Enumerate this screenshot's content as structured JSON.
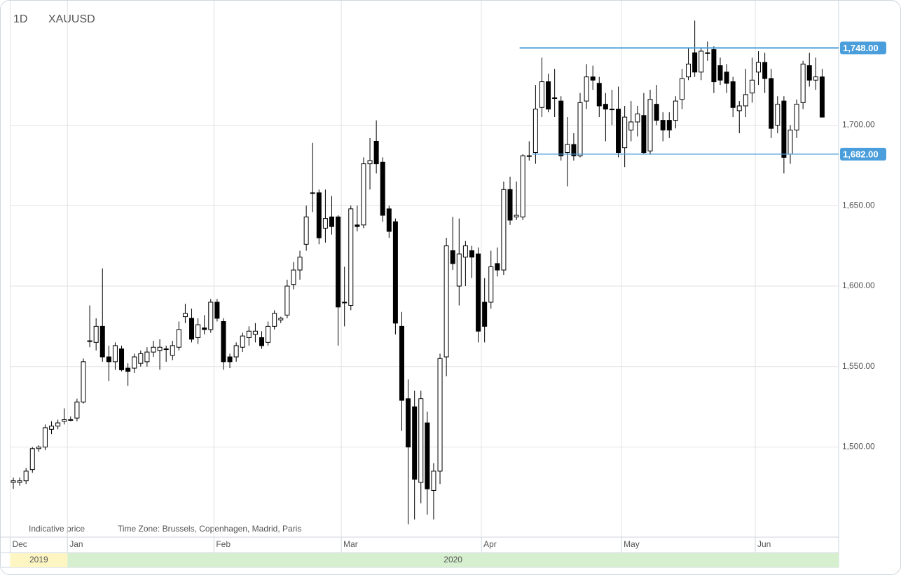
{
  "chart_data": {
    "type": "candlestick",
    "symbol": "XAUUSD",
    "period": "1D",
    "footnote": "Indicative price",
    "timezone": "Time Zone: Brussels, Copenhagen, Madrid, Paris",
    "open": [
      1478,
      1478,
      1479,
      1486,
      1499,
      1500,
      1511,
      1513,
      1516,
      1517,
      1518,
      1528,
      1566,
      1565,
      1575,
      1556,
      1553,
      1561,
      1549,
      1549,
      1552,
      1553,
      1559,
      1560,
      1561,
      1557,
      1562,
      1581,
      1580,
      1568,
      1574,
      1573,
      1590,
      1578,
      1556,
      1556,
      1562,
      1568,
      1570,
      1568,
      1565,
      1575,
      1579,
      1582,
      1601,
      1610,
      1626,
      1658,
      1658,
      1636,
      1643,
      1643,
      1590,
      1588,
      1638,
      1638,
      1676,
      1690,
      1677,
      1648,
      1640,
      1575,
      1530,
      1525,
      1478,
      1515,
      1473,
      1485,
      1556,
      1622,
      1600,
      1618,
      1622,
      1620,
      1590,
      1590,
      1614,
      1610,
      1660,
      1643,
      1643,
      1681,
      1683,
      1711,
      1727,
      1717,
      1715,
      1683,
      1688,
      1681,
      1715,
      1730,
      1726,
      1713,
      1710,
      1710,
      1686,
      1697,
      1702,
      1706,
      1684,
      1713,
      1703,
      1703,
      1703,
      1716,
      1730,
      1745,
      1733,
      1745,
      1747,
      1737,
      1733,
      1727,
      1709,
      1712,
      1720,
      1733,
      1739,
      1729,
      1700,
      1715,
      1682,
      1697,
      1714,
      1737,
      1728,
      1730
    ],
    "high": [
      1481,
      1481,
      1487,
      1500,
      1501,
      1514,
      1516,
      1517,
      1524,
      1519,
      1530,
      1555,
      1588,
      1580,
      1611,
      1563,
      1565,
      1563,
      1552,
      1558,
      1560,
      1562,
      1566,
      1567,
      1563,
      1566,
      1578,
      1589,
      1586,
      1580,
      1582,
      1592,
      1592,
      1580,
      1558,
      1565,
      1571,
      1575,
      1577,
      1572,
      1578,
      1585,
      1581,
      1604,
      1615,
      1622,
      1650,
      1689,
      1660,
      1660,
      1656,
      1644,
      1612,
      1650,
      1650,
      1680,
      1692,
      1703,
      1680,
      1650,
      1642,
      1584,
      1542,
      1535,
      1535,
      1522,
      1490,
      1558,
      1630,
      1643,
      1642,
      1628,
      1625,
      1624,
      1605,
      1622,
      1624,
      1665,
      1668,
      1665,
      1682,
      1690,
      1725,
      1742,
      1732,
      1735,
      1718,
      1705,
      1695,
      1720,
      1738,
      1737,
      1730,
      1720,
      1722,
      1724,
      1712,
      1715,
      1712,
      1720,
      1722,
      1725,
      1708,
      1708,
      1718,
      1735,
      1748,
      1765,
      1748,
      1752,
      1749,
      1742,
      1738,
      1730,
      1715,
      1735,
      1742,
      1746,
      1745,
      1735,
      1718,
      1718,
      1700,
      1716,
      1740,
      1745,
      1742,
      1735
    ],
    "low": [
      1474,
      1476,
      1477,
      1484,
      1497,
      1498,
      1508,
      1511,
      1514,
      1516,
      1516,
      1527,
      1562,
      1560,
      1553,
      1541,
      1548,
      1547,
      1538,
      1546,
      1550,
      1550,
      1556,
      1548,
      1553,
      1554,
      1560,
      1577,
      1565,
      1564,
      1570,
      1571,
      1578,
      1548,
      1549,
      1553,
      1559,
      1563,
      1565,
      1561,
      1563,
      1573,
      1577,
      1580,
      1598,
      1604,
      1622,
      1646,
      1626,
      1627,
      1632,
      1563,
      1575,
      1585,
      1634,
      1636,
      1660,
      1670,
      1640,
      1630,
      1570,
      1510,
      1452,
      1455,
      1465,
      1458,
      1455,
      1477,
      1544,
      1610,
      1588,
      1600,
      1605,
      1565,
      1565,
      1586,
      1606,
      1607,
      1638,
      1641,
      1641,
      1678,
      1676,
      1705,
      1708,
      1705,
      1678,
      1662,
      1678,
      1680,
      1710,
      1722,
      1705,
      1690,
      1700,
      1680,
      1674,
      1690,
      1693,
      1682,
      1682,
      1700,
      1690,
      1692,
      1698,
      1710,
      1728,
      1730,
      1728,
      1740,
      1720,
      1725,
      1720,
      1705,
      1695,
      1705,
      1714,
      1725,
      1720,
      1692,
      1695,
      1670,
      1676,
      1692,
      1710,
      1724,
      1722,
      1705
    ],
    "close": [
      1479,
      1479,
      1485,
      1499,
      1500,
      1512,
      1513,
      1515,
      1517,
      1517,
      1528,
      1553,
      1566,
      1575,
      1556,
      1553,
      1563,
      1548,
      1547,
      1556,
      1558,
      1559,
      1562,
      1562,
      1561,
      1563,
      1573,
      1583,
      1567,
      1576,
      1573,
      1590,
      1580,
      1553,
      1553,
      1563,
      1569,
      1572,
      1572,
      1563,
      1575,
      1583,
      1580,
      1600,
      1610,
      1618,
      1643,
      1658,
      1630,
      1642,
      1637,
      1587,
      1590,
      1648,
      1637,
      1676,
      1678,
      1676,
      1644,
      1634,
      1577,
      1529,
      1500,
      1480,
      1530,
      1474,
      1485,
      1555,
      1625,
      1614,
      1620,
      1625,
      1618,
      1572,
      1575,
      1612,
      1610,
      1660,
      1641,
      1644,
      1681,
      1681,
      1710,
      1727,
      1710,
      1717,
      1681,
      1688,
      1681,
      1714,
      1730,
      1728,
      1712,
      1710,
      1710,
      1683,
      1705,
      1702,
      1707,
      1683,
      1716,
      1703,
      1697,
      1697,
      1715,
      1729,
      1738,
      1733,
      1746,
      1745,
      1727,
      1728,
      1726,
      1711,
      1712,
      1719,
      1728,
      1739,
      1729,
      1698,
      1713,
      1680,
      1697,
      1713,
      1738,
      1728,
      1730,
      1705
    ],
    "up_color": "#ffffff",
    "down_color": "#000000",
    "outline_color": "#000000",
    "ylim": [
      1444,
      1773
    ],
    "yticks": [
      {
        "value": 1500,
        "label": "1,500.00"
      },
      {
        "value": 1550,
        "label": "1,550.00"
      },
      {
        "value": 1600,
        "label": "1,600.00"
      },
      {
        "value": 1650,
        "label": "1,650.00"
      },
      {
        "value": 1700,
        "label": "1,700.00"
      }
    ],
    "xticks": [
      {
        "value": -0.5,
        "label": "Dec"
      },
      {
        "value": 8.5,
        "label": "Jan"
      },
      {
        "value": 31.5,
        "label": "Feb"
      },
      {
        "value": 51.5,
        "label": "Mar"
      },
      {
        "value": 73.5,
        "label": "Apr"
      },
      {
        "value": 95.5,
        "label": "May"
      },
      {
        "value": 116.5,
        "label": "Jun"
      }
    ],
    "years": [
      {
        "value": -0.5,
        "label": "2019"
      },
      {
        "value": 8.5,
        "label": "2020"
      }
    ],
    "levels": [
      {
        "value": 1748,
        "label": "1,748.00"
      },
      {
        "value": 1682,
        "label": "1,682.00"
      }
    ],
    "level_color": "#4a9edb",
    "grid": true
  }
}
